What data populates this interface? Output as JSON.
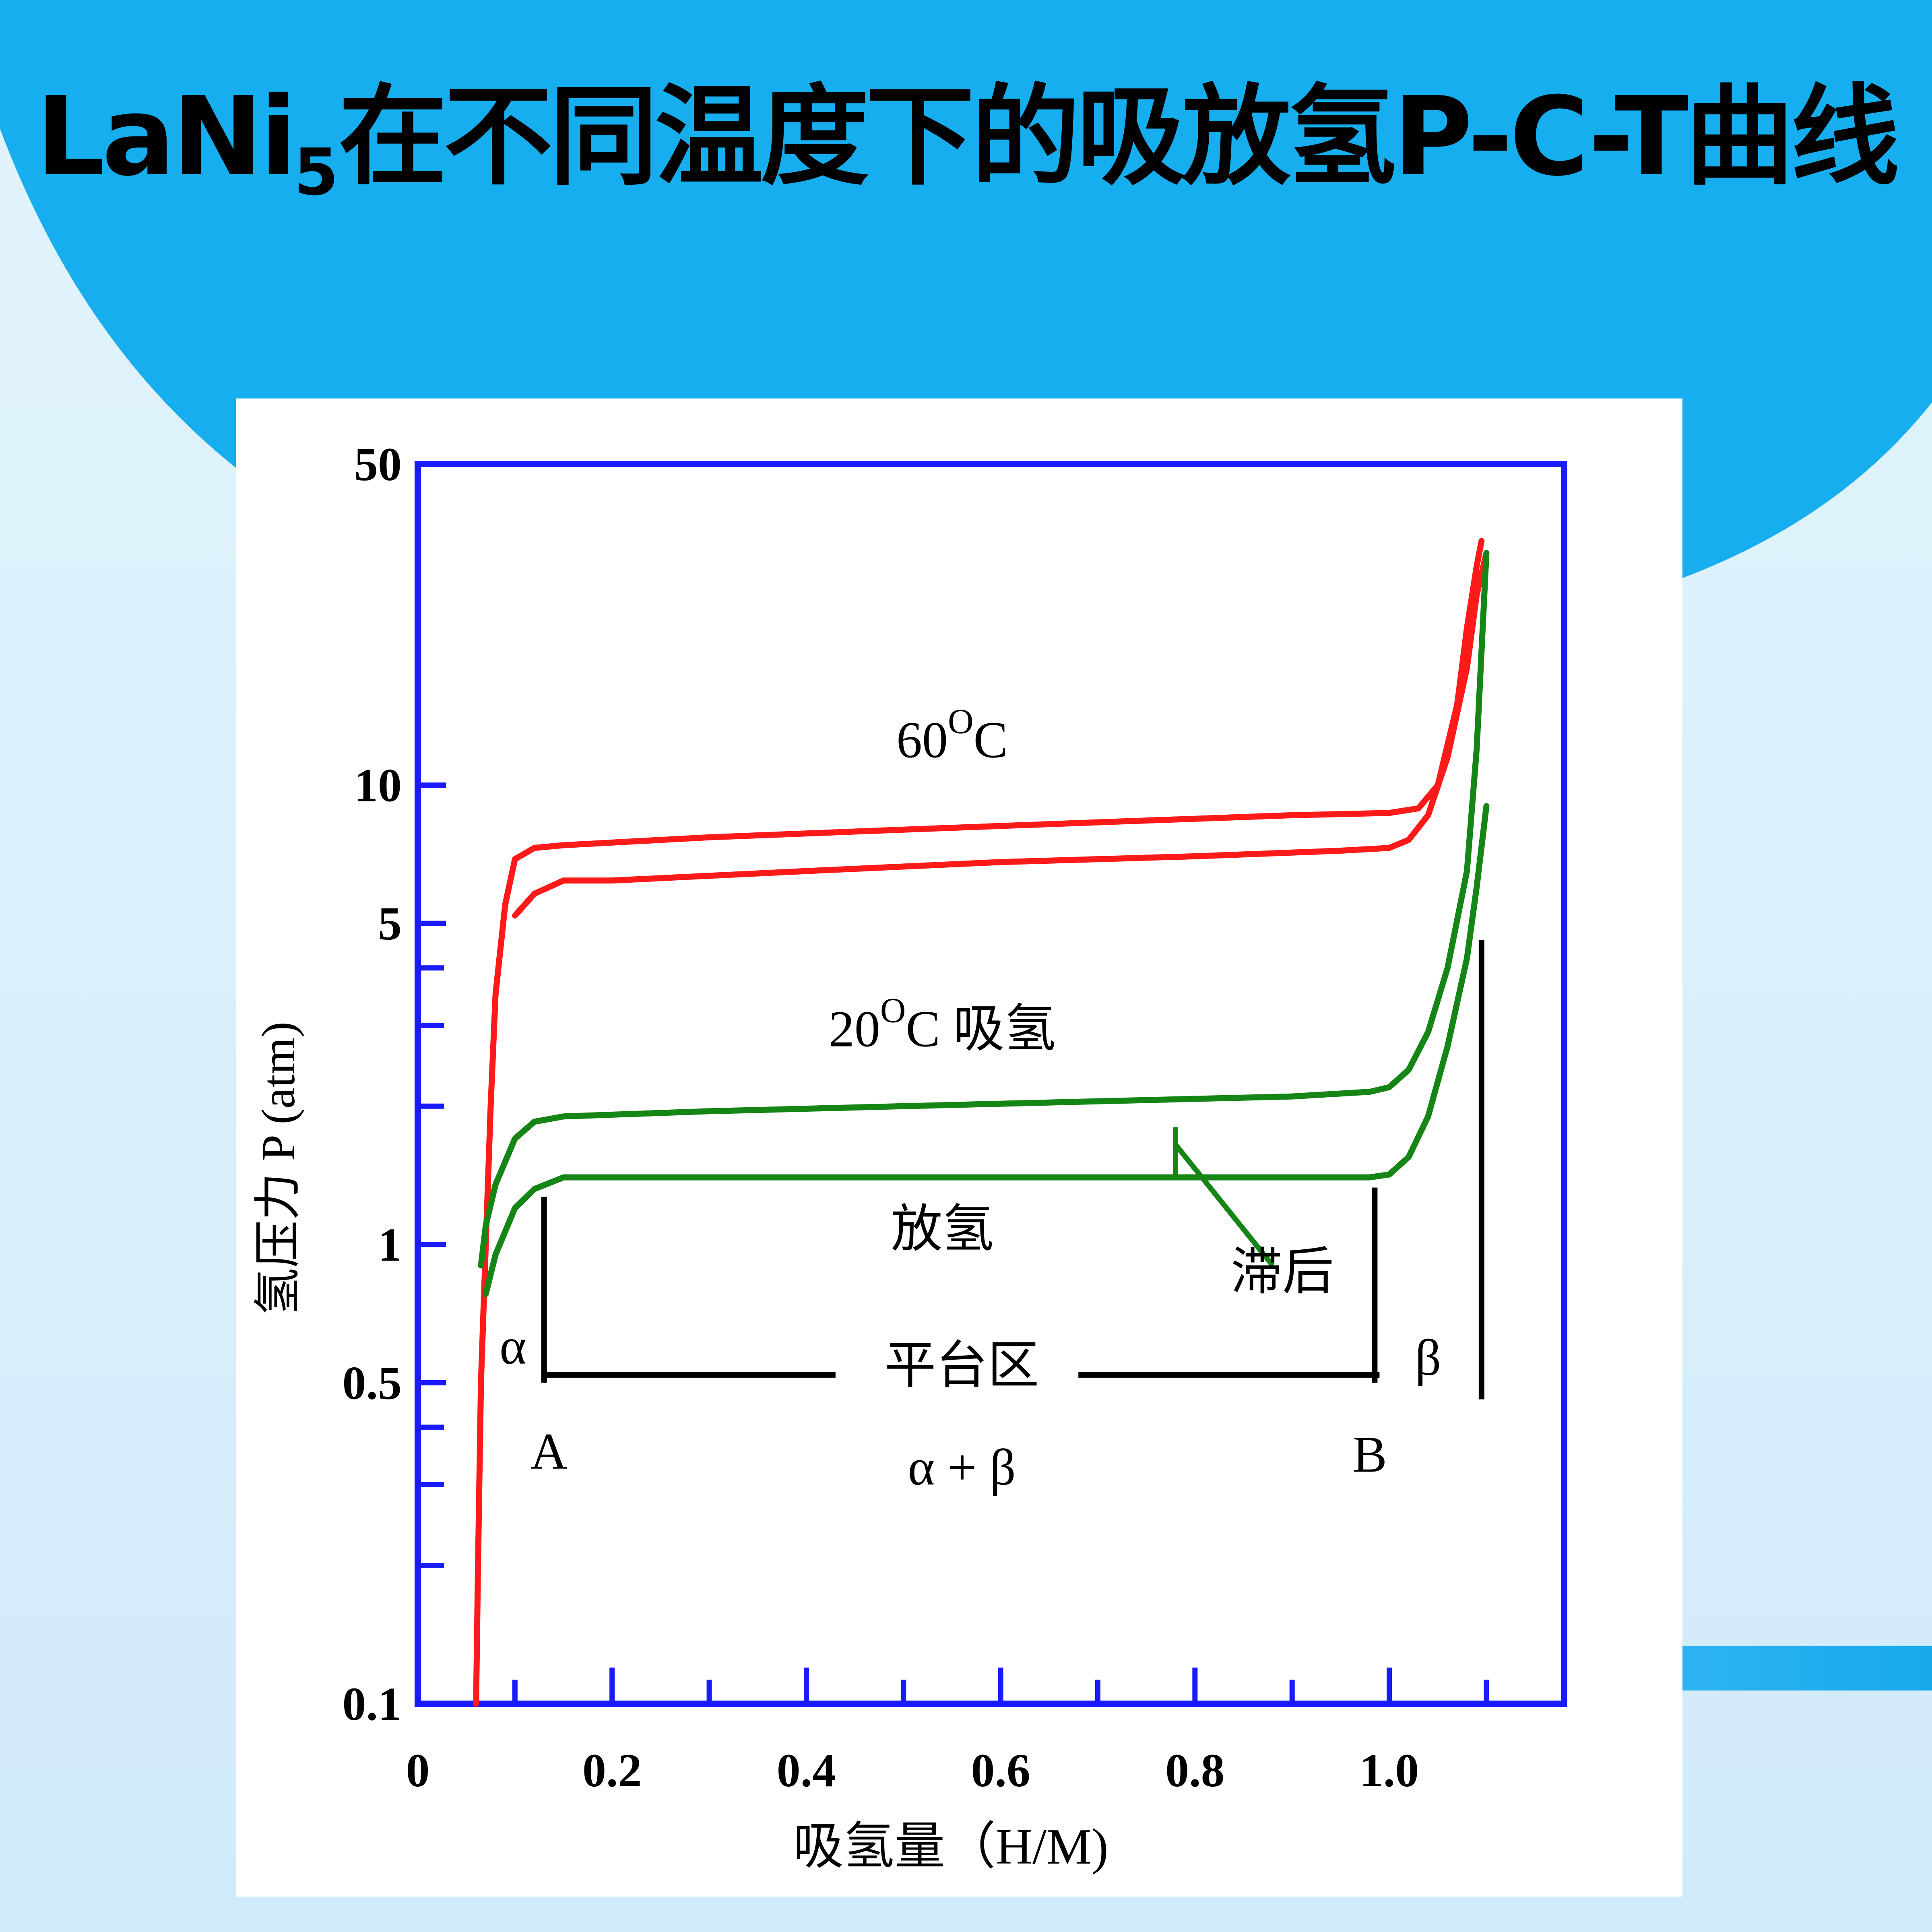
{
  "slide": {
    "title_main": "LaNi",
    "title_sub": "5",
    "title_rest": "在不同温度下的吸放氢P-C-T曲线",
    "colors": {
      "header_blue": "#16aeee",
      "background": "#d4ecfa",
      "axis_blue": "#1a1aff",
      "curve_60c": "#ff1a1a",
      "curve_20c": "#158515"
    }
  },
  "chart_data": {
    "type": "line",
    "title": "",
    "xlabel": "吸氢量（H/M)",
    "ylabel": "氢压力 P (atm)",
    "xlim": [
      0,
      1.18
    ],
    "ylim": [
      0.1,
      50
    ],
    "yscale": "log",
    "grid": false,
    "x_ticks": [
      {
        "value": 0,
        "label": "0"
      },
      {
        "value": 0.2,
        "label": "0.2"
      },
      {
        "value": 0.4,
        "label": "0.4"
      },
      {
        "value": 0.6,
        "label": "0.6"
      },
      {
        "value": 0.8,
        "label": "0.8"
      },
      {
        "value": 1.0,
        "label": "1.0"
      }
    ],
    "x_minor_ticks": [
      0.1,
      0.3,
      0.5,
      0.7,
      0.9,
      1.1
    ],
    "y_ticks": [
      {
        "value": 0.1,
        "label": "0.1"
      },
      {
        "value": 0.5,
        "label": "0.5"
      },
      {
        "value": 1,
        "label": "1"
      },
      {
        "value": 5,
        "label": "5"
      },
      {
        "value": 10,
        "label": "10"
      },
      {
        "value": 50,
        "label": "50"
      }
    ],
    "y_minor_ticks": [
      0.2,
      0.3,
      0.4,
      2,
      3,
      4
    ],
    "series": [
      {
        "color": "#ff1a1a",
        "x": [
          0.06,
          0.062,
          0.065,
          0.07,
          0.075,
          0.08,
          0.09,
          0.1,
          0.12,
          0.15,
          0.3,
          0.5,
          0.7,
          0.9,
          1.0,
          1.03,
          1.05,
          1.07,
          1.08,
          1.09,
          1.095
        ],
        "y": [
          0.1,
          0.2,
          0.5,
          1.0,
          2.0,
          3.5,
          5.5,
          6.9,
          7.3,
          7.4,
          7.7,
          8.0,
          8.3,
          8.6,
          8.7,
          8.9,
          10.0,
          15.0,
          22.0,
          30.0,
          34.0
        ]
      },
      {
        "color": "#ff1a1a",
        "x": [
          0.1,
          0.12,
          0.15,
          0.2,
          0.4,
          0.6,
          0.8,
          0.95,
          1.0,
          1.02,
          1.04,
          1.06,
          1.08,
          1.09,
          1.1
        ],
        "y": [
          5.2,
          5.8,
          6.2,
          6.2,
          6.5,
          6.8,
          7.0,
          7.2,
          7.3,
          7.6,
          8.6,
          11.5,
          18.0,
          26.0,
          32.0
        ]
      },
      {
        "color": "#158515",
        "x": [
          0.065,
          0.07,
          0.08,
          0.1,
          0.12,
          0.15,
          0.3,
          0.5,
          0.7,
          0.9,
          0.98,
          1.0,
          1.02,
          1.04,
          1.06,
          1.08,
          1.09,
          1.1
        ],
        "y": [
          0.9,
          1.1,
          1.35,
          1.7,
          1.85,
          1.9,
          1.95,
          2.0,
          2.05,
          2.1,
          2.15,
          2.2,
          2.4,
          2.9,
          4.0,
          6.5,
          12.0,
          32.0
        ]
      },
      {
        "color": "#158515",
        "x": [
          0.07,
          0.08,
          0.1,
          0.12,
          0.15,
          0.3,
          0.5,
          0.7,
          0.9,
          0.98,
          1.0,
          1.02,
          1.04,
          1.06,
          1.08,
          1.09,
          1.1
        ],
        "y": [
          0.78,
          0.95,
          1.2,
          1.32,
          1.4,
          1.4,
          1.4,
          1.4,
          1.4,
          1.4,
          1.42,
          1.55,
          1.9,
          2.7,
          4.2,
          6.0,
          9.0
        ]
      }
    ],
    "annotations": [
      {
        "text": "60",
        "sup": "O",
        "tail": "C",
        "x": 0.55,
        "y": 11.5
      },
      {
        "text": "20",
        "sup": "O",
        "tail": "C  吸氢",
        "x": 0.54,
        "y": 2.7
      },
      {
        "text": "放氢",
        "x": 0.54,
        "y": 0.99
      },
      {
        "text": "滞后",
        "x": 0.89,
        "y": 0.8
      },
      {
        "text": "α",
        "x": 0.098,
        "y": 0.55
      },
      {
        "text": "平台区",
        "x": 0.56,
        "y": 0.5
      },
      {
        "text": "β",
        "x": 1.04,
        "y": 0.52
      },
      {
        "text": "A",
        "x": 0.135,
        "y": 0.325
      },
      {
        "text": "B",
        "x": 0.98,
        "y": 0.32
      },
      {
        "text": "α + β",
        "x": 0.56,
        "y": 0.3
      }
    ],
    "markers": {
      "plateau_line": {
        "x1": 0.13,
        "x2": 0.99,
        "y": 0.52
      },
      "boundary_A": {
        "x": 0.13,
        "y1": 0.5,
        "y2": 1.27
      },
      "boundary_B": {
        "x": 0.985,
        "y1": 0.5,
        "y2": 1.33
      },
      "beta_edge": {
        "x": 1.095,
        "y1": 0.46,
        "y2": 4.6
      },
      "hysteresis": [
        {
          "x1": 0.78,
          "y1": 1.8,
          "x2": 0.78,
          "y2": 1.42
        },
        {
          "x1": 0.78,
          "y1": 1.65,
          "x2": 0.88,
          "y2": 0.9
        }
      ]
    }
  }
}
